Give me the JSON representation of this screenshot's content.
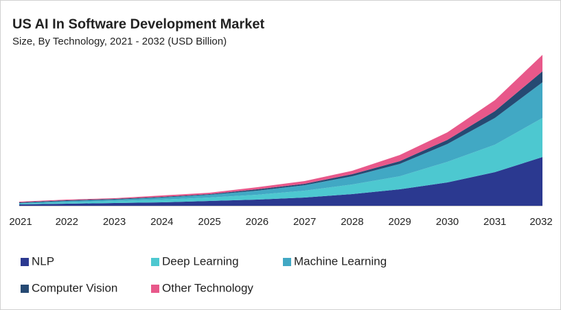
{
  "chart_data": {
    "type": "stacked-area",
    "title": "US AI In Software Development Market",
    "subtitle": "Size, By Technology, 2021 - 2032 (USD Billion)",
    "categories": [
      "2021",
      "2022",
      "2023",
      "2024",
      "2025",
      "2026",
      "2027",
      "2028",
      "2029",
      "2030",
      "2031",
      "2032"
    ],
    "series": [
      {
        "name": "NLP",
        "color": "#2b3990",
        "values": [
          2,
          3,
          4,
          5,
          7,
          9,
          12,
          17,
          24,
          34,
          49,
          71
        ]
      },
      {
        "name": "Deep Learning",
        "color": "#4dc8d0",
        "values": [
          1,
          2,
          3,
          4,
          5,
          7,
          10,
          14,
          19,
          30,
          40,
          57
        ]
      },
      {
        "name": "Machine Learning",
        "color": "#41a8c4",
        "values": [
          1,
          2,
          2,
          3,
          4,
          6,
          8,
          12,
          18,
          26,
          39,
          52
        ]
      },
      {
        "name": "Computer Vision",
        "color": "#264a73",
        "values": [
          1,
          1,
          1,
          1,
          1,
          2,
          2,
          3,
          4,
          6,
          10,
          16
        ]
      },
      {
        "name": "Other Technology",
        "color": "#e8588a",
        "values": [
          1,
          1,
          1,
          2,
          2,
          3,
          4,
          5,
          9,
          11,
          16,
          24
        ]
      }
    ]
  }
}
